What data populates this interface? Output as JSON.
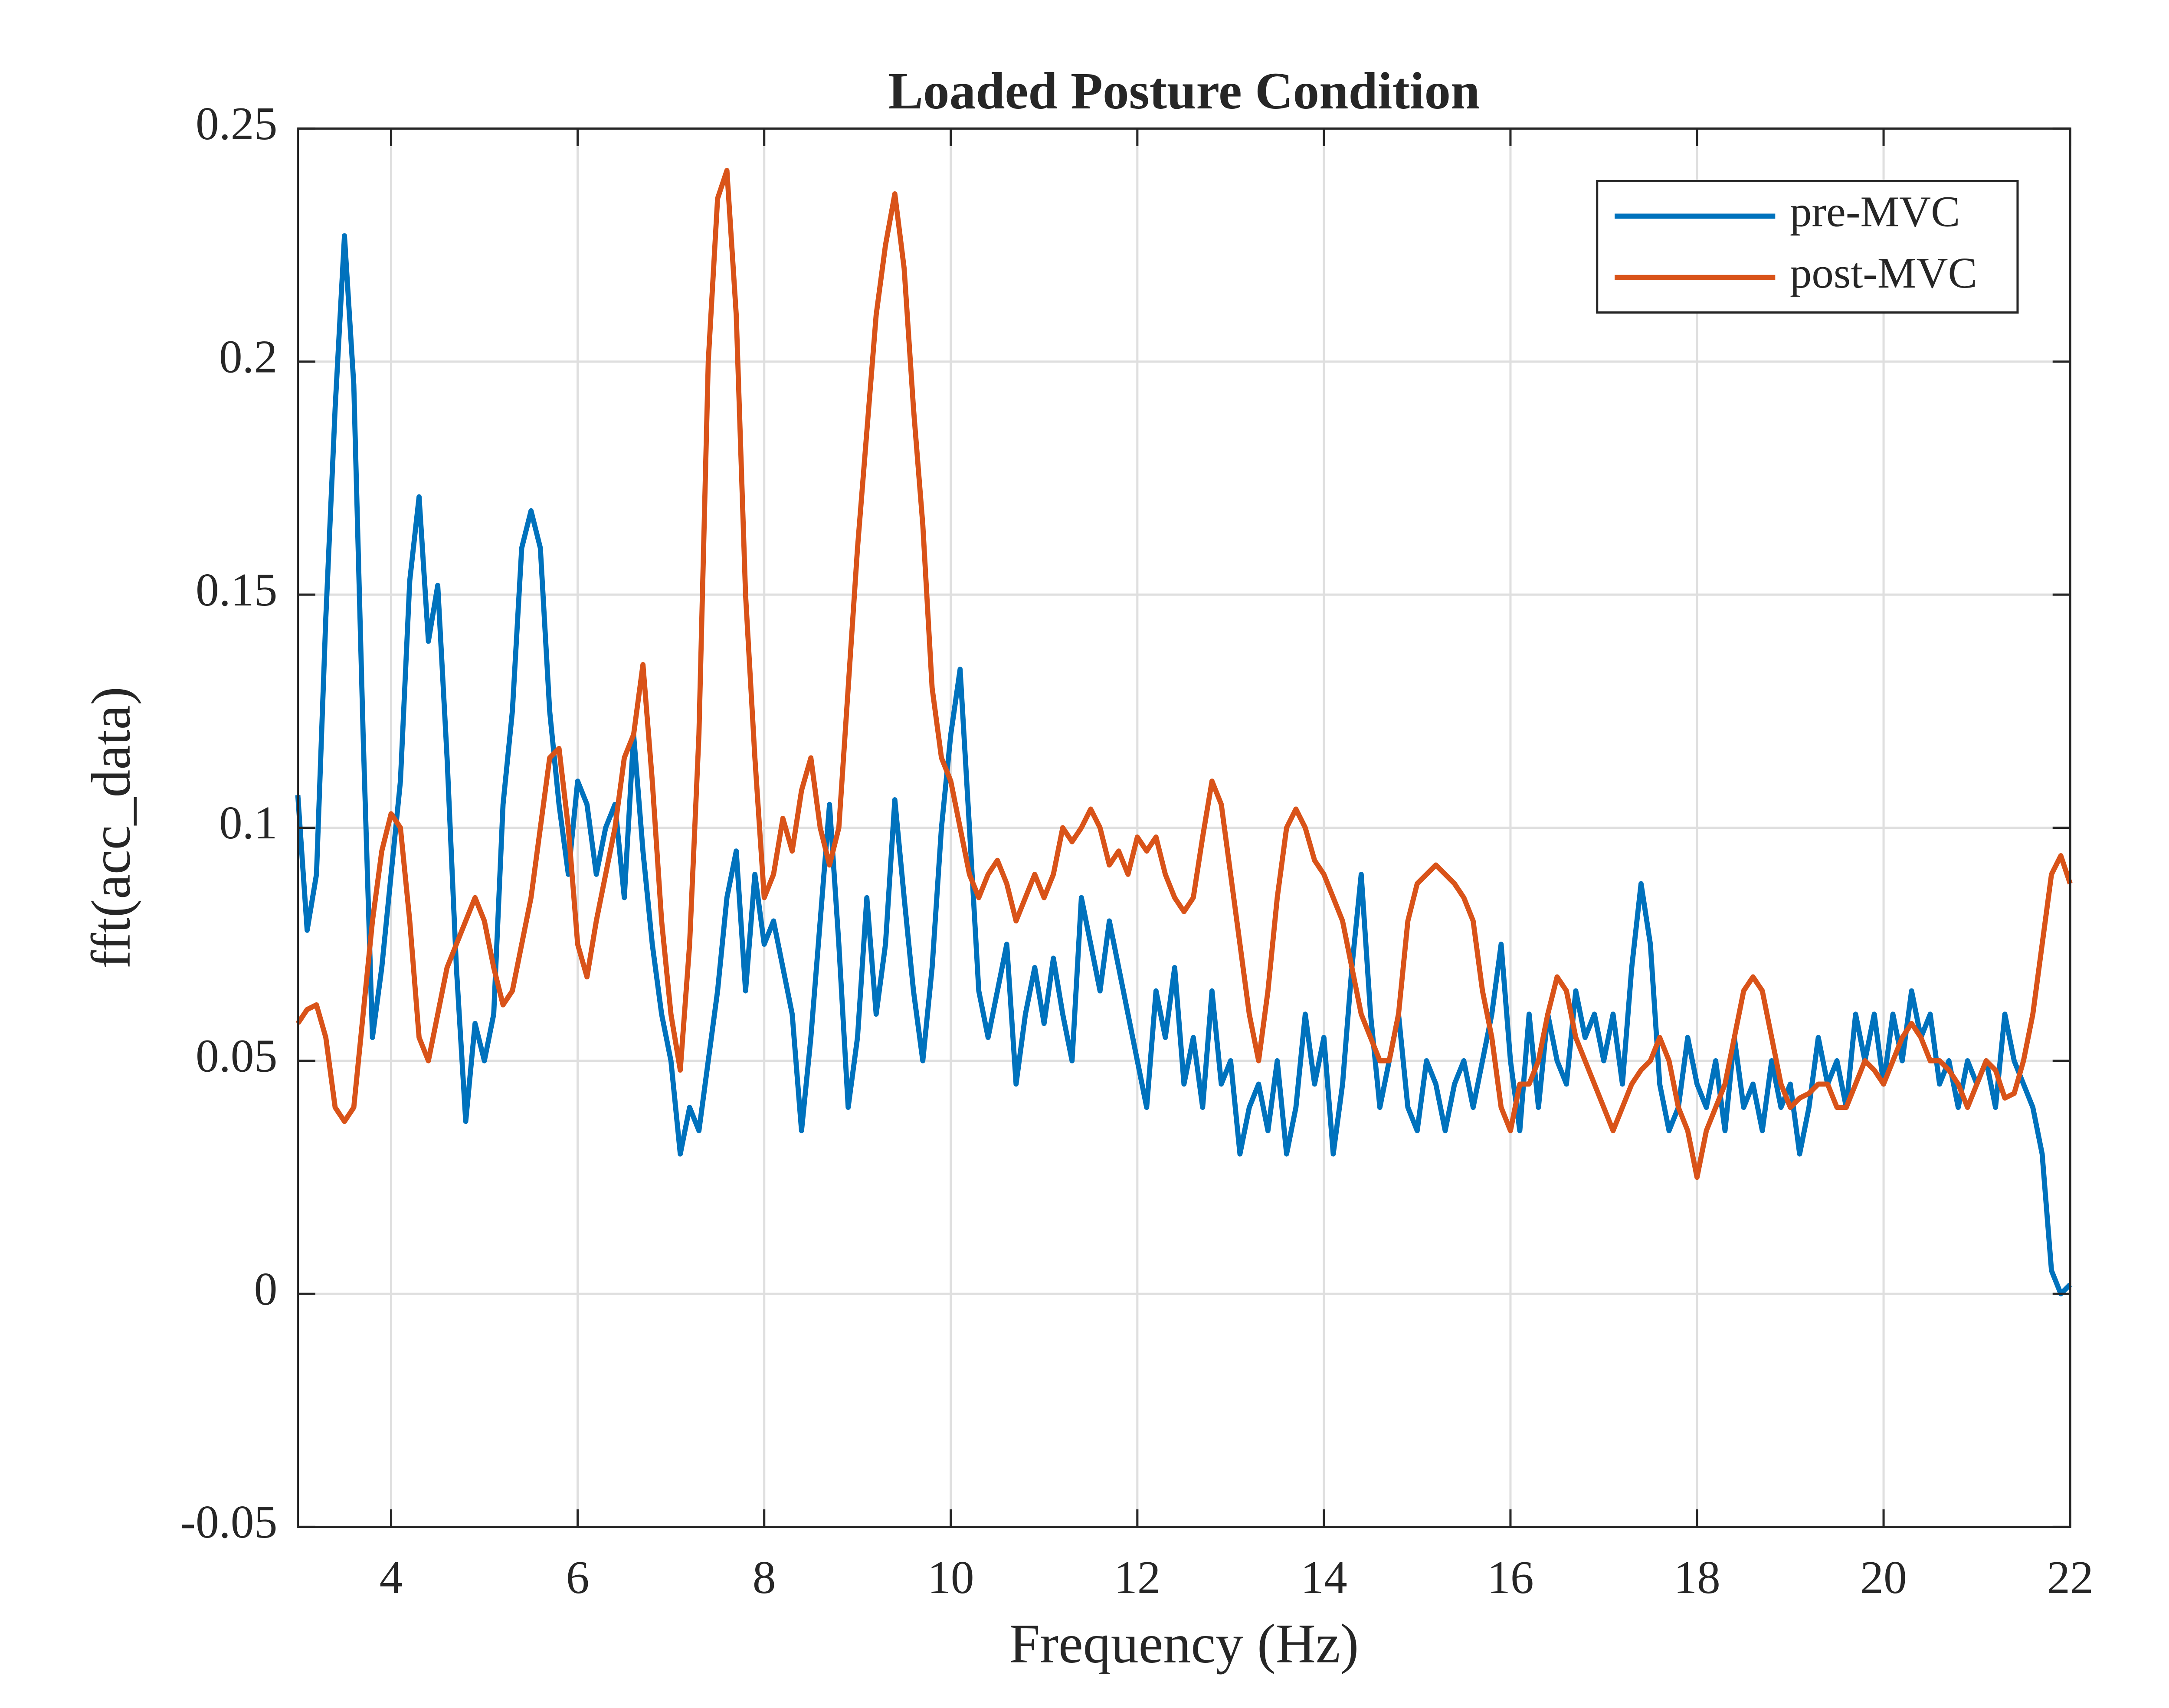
{
  "chart_data": {
    "type": "line",
    "title": "Loaded Posture Condition",
    "xlabel": "Frequency (Hz)",
    "ylabel": "fft(acc_data)",
    "x": [
      3,
      3.1,
      3.2,
      3.3,
      3.4,
      3.5,
      3.6,
      3.7,
      3.8,
      3.9,
      4,
      4.1,
      4.2,
      4.3,
      4.4,
      4.5,
      4.6,
      4.7,
      4.8,
      4.9,
      5,
      5.1,
      5.2,
      5.3,
      5.4,
      5.5,
      5.6,
      5.7,
      5.8,
      5.9,
      6,
      6.1,
      6.2,
      6.3,
      6.4,
      6.5,
      6.6,
      6.7,
      6.8,
      6.9,
      7,
      7.1,
      7.2,
      7.3,
      7.4,
      7.5,
      7.6,
      7.7,
      7.8,
      7.9,
      8,
      8.1,
      8.2,
      8.3,
      8.4,
      8.5,
      8.6,
      8.7,
      8.8,
      8.9,
      9,
      9.1,
      9.2,
      9.3,
      9.4,
      9.5,
      9.6,
      9.7,
      9.8,
      9.9,
      10,
      10.1,
      10.2,
      10.3,
      10.4,
      10.5,
      10.6,
      10.7,
      10.8,
      10.9,
      11,
      11.1,
      11.2,
      11.3,
      11.4,
      11.5,
      11.6,
      11.7,
      11.8,
      11.9,
      12,
      12.1,
      12.2,
      12.3,
      12.4,
      12.5,
      12.6,
      12.7,
      12.8,
      12.9,
      13,
      13.1,
      13.2,
      13.3,
      13.4,
      13.5,
      13.6,
      13.7,
      13.8,
      13.9,
      14,
      14.1,
      14.2,
      14.3,
      14.4,
      14.5,
      14.6,
      14.7,
      14.8,
      14.9,
      15,
      15.1,
      15.2,
      15.3,
      15.4,
      15.5,
      15.6,
      15.7,
      15.8,
      15.9,
      16,
      16.1,
      16.2,
      16.3,
      16.4,
      16.5,
      16.6,
      16.7,
      16.8,
      16.9,
      17,
      17.1,
      17.2,
      17.3,
      17.4,
      17.5,
      17.6,
      17.7,
      17.8,
      17.9,
      18,
      18.1,
      18.2,
      18.3,
      18.4,
      18.5,
      18.6,
      18.7,
      18.8,
      18.9,
      19,
      19.1,
      19.2,
      19.3,
      19.4,
      19.5,
      19.6,
      19.7,
      19.8,
      19.9,
      20,
      20.1,
      20.2,
      20.3,
      20.4,
      20.5,
      20.6,
      20.7,
      20.8,
      20.9,
      21,
      21.1,
      21.2,
      21.3,
      21.4,
      21.5,
      21.6,
      21.7,
      21.8,
      21.9,
      22
    ],
    "series": [
      {
        "name": "pre-MVC",
        "color": "#0072bd",
        "values": [
          0.107,
          0.078,
          0.09,
          0.145,
          0.19,
          0.227,
          0.195,
          0.12,
          0.055,
          0.07,
          0.09,
          0.11,
          0.153,
          0.171,
          0.14,
          0.152,
          0.115,
          0.07,
          0.037,
          0.058,
          0.05,
          0.06,
          0.105,
          0.125,
          0.16,
          0.168,
          0.16,
          0.125,
          0.105,
          0.09,
          0.11,
          0.105,
          0.09,
          0.1,
          0.105,
          0.085,
          0.12,
          0.095,
          0.075,
          0.06,
          0.05,
          0.03,
          0.04,
          0.035,
          0.05,
          0.065,
          0.085,
          0.095,
          0.065,
          0.09,
          0.075,
          0.08,
          0.07,
          0.06,
          0.035,
          0.055,
          0.08,
          0.105,
          0.075,
          0.04,
          0.055,
          0.085,
          0.06,
          0.075,
          0.106,
          0.085,
          0.065,
          0.05,
          0.07,
          0.1,
          0.12,
          0.134,
          0.1,
          0.065,
          0.055,
          0.065,
          0.075,
          0.045,
          0.06,
          0.07,
          0.058,
          0.072,
          0.06,
          0.05,
          0.085,
          0.075,
          0.065,
          0.08,
          0.07,
          0.06,
          0.05,
          0.04,
          0.065,
          0.055,
          0.07,
          0.045,
          0.055,
          0.04,
          0.065,
          0.045,
          0.05,
          0.03,
          0.04,
          0.045,
          0.035,
          0.05,
          0.03,
          0.04,
          0.06,
          0.045,
          0.055,
          0.03,
          0.045,
          0.07,
          0.09,
          0.06,
          0.04,
          0.05,
          0.06,
          0.04,
          0.035,
          0.05,
          0.045,
          0.035,
          0.045,
          0.05,
          0.04,
          0.05,
          0.06,
          0.075,
          0.05,
          0.035,
          0.06,
          0.04,
          0.06,
          0.05,
          0.045,
          0.065,
          0.055,
          0.06,
          0.05,
          0.06,
          0.045,
          0.07,
          0.088,
          0.075,
          0.045,
          0.035,
          0.04,
          0.055,
          0.045,
          0.04,
          0.05,
          0.035,
          0.055,
          0.04,
          0.045,
          0.035,
          0.05,
          0.04,
          0.045,
          0.03,
          0.04,
          0.055,
          0.045,
          0.05,
          0.04,
          0.06,
          0.05,
          0.06,
          0.045,
          0.06,
          0.05,
          0.065,
          0.055,
          0.06,
          0.045,
          0.05,
          0.04,
          0.05,
          0.045,
          0.05,
          0.04,
          0.06,
          0.05,
          0.045,
          0.04,
          0.03,
          0.005,
          0,
          0.002
        ]
      },
      {
        "name": "post-MVC",
        "color": "#d95319",
        "values": [
          0.058,
          0.061,
          0.062,
          0.055,
          0.04,
          0.037,
          0.04,
          0.06,
          0.08,
          0.095,
          0.103,
          0.1,
          0.08,
          0.055,
          0.05,
          0.06,
          0.07,
          0.075,
          0.08,
          0.085,
          0.08,
          0.07,
          0.062,
          0.065,
          0.075,
          0.085,
          0.1,
          0.115,
          0.117,
          0.1,
          0.075,
          0.068,
          0.08,
          0.09,
          0.1,
          0.115,
          0.12,
          0.135,
          0.11,
          0.08,
          0.06,
          0.048,
          0.075,
          0.12,
          0.2,
          0.235,
          0.241,
          0.21,
          0.15,
          0.115,
          0.085,
          0.09,
          0.102,
          0.095,
          0.108,
          0.115,
          0.1,
          0.092,
          0.1,
          0.13,
          0.16,
          0.185,
          0.21,
          0.225,
          0.236,
          0.22,
          0.19,
          0.165,
          0.13,
          0.115,
          0.11,
          0.1,
          0.09,
          0.085,
          0.09,
          0.093,
          0.088,
          0.08,
          0.085,
          0.09,
          0.085,
          0.09,
          0.1,
          0.097,
          0.1,
          0.104,
          0.1,
          0.092,
          0.095,
          0.09,
          0.098,
          0.095,
          0.098,
          0.09,
          0.085,
          0.082,
          0.085,
          0.098,
          0.11,
          0.105,
          0.09,
          0.075,
          0.06,
          0.05,
          0.065,
          0.085,
          0.1,
          0.104,
          0.1,
          0.093,
          0.09,
          0.085,
          0.08,
          0.07,
          0.06,
          0.055,
          0.05,
          0.05,
          0.06,
          0.08,
          0.088,
          0.09,
          0.092,
          0.09,
          0.088,
          0.085,
          0.08,
          0.065,
          0.055,
          0.04,
          0.035,
          0.045,
          0.045,
          0.05,
          0.06,
          0.068,
          0.065,
          0.055,
          0.05,
          0.045,
          0.04,
          0.035,
          0.04,
          0.045,
          0.048,
          0.05,
          0.055,
          0.05,
          0.04,
          0.035,
          0.025,
          0.035,
          0.04,
          0.045,
          0.055,
          0.065,
          0.068,
          0.065,
          0.055,
          0.045,
          0.04,
          0.042,
          0.043,
          0.045,
          0.045,
          0.04,
          0.04,
          0.045,
          0.05,
          0.048,
          0.045,
          0.05,
          0.055,
          0.058,
          0.055,
          0.05,
          0.05,
          0.048,
          0.045,
          0.04,
          0.045,
          0.05,
          0.048,
          0.042,
          0.043,
          0.05,
          0.06,
          0.075,
          0.09,
          0.094,
          0.088
        ]
      }
    ],
    "xlim": [
      3,
      22
    ],
    "xticks": [
      4,
      6,
      8,
      10,
      12,
      14,
      16,
      18,
      20,
      22
    ],
    "ylim": [
      -0.05,
      0.25
    ],
    "yticks": [
      -0.05,
      0,
      0.05,
      0.1,
      0.15,
      0.2,
      0.25
    ],
    "grid": true,
    "legend": "upper right"
  }
}
